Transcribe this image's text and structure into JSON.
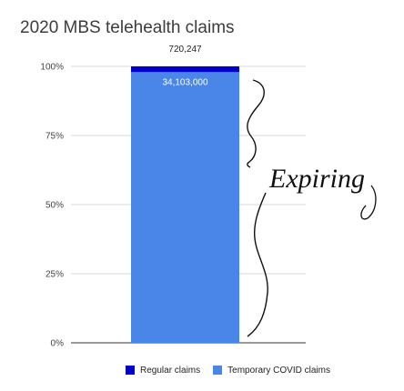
{
  "chart_data": {
    "type": "bar",
    "stacked": "percent",
    "title": "2020 MBS telehealth claims",
    "xlabel": "",
    "ylabel": "",
    "categories": [
      ""
    ],
    "ylim": [
      0,
      100
    ],
    "yticks": [
      "0%",
      "25%",
      "50%",
      "75%",
      "100%"
    ],
    "grid": true,
    "legend_position": "bottom",
    "series": [
      {
        "name": "Temporary COVID claims",
        "values": [
          34103000
        ],
        "label": "34,103,000",
        "color": "#4a86e8"
      },
      {
        "name": "Regular claims",
        "values": [
          720247
        ],
        "label": "720,247",
        "color": "#0000cc"
      }
    ],
    "annotation": {
      "text": "Expiring",
      "type": "handwritten-brace"
    }
  }
}
